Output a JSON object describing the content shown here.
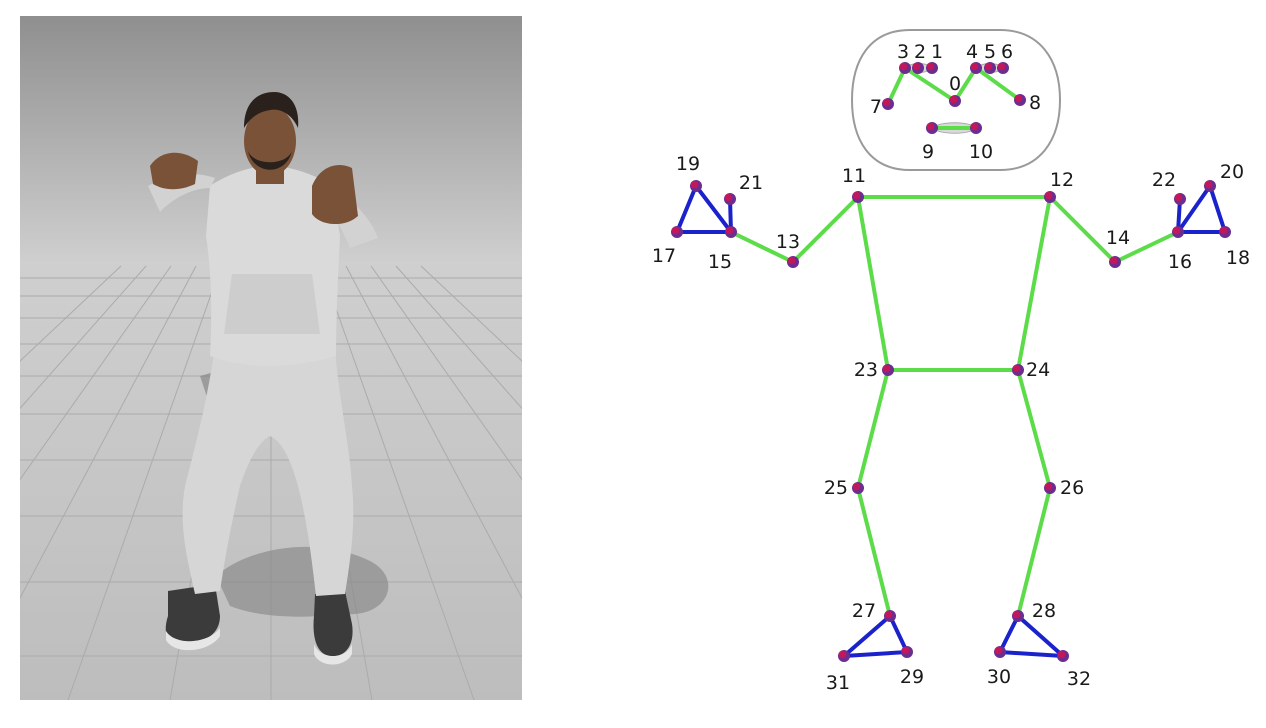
{
  "render": {
    "subject": "3d-human-figure-in-gray-hoodie-and-sweatpants",
    "colors": {
      "sky_top": "#8e8e8e",
      "sky_bottom": "#d2d2d2",
      "floor": "#c4c4c4",
      "grid": "#a9a9a9",
      "cloth": "#d7d7d7",
      "skin": "#7a5238",
      "hair": "#2a211c",
      "shoe": "#3a3a3a",
      "shadow": "#8a8a8a"
    }
  },
  "skeleton": {
    "colors": {
      "body_edge": "#5ddc4a",
      "extremity_edge": "#1a22cc",
      "landmark_fill": "#c2185b",
      "landmark_ring": "#6b2d8f",
      "label": "#1a1a1a",
      "head_outline": "#9a9a9a"
    },
    "landmarks": [
      {
        "id": "0",
        "label": "0"
      },
      {
        "id": "1",
        "label": "1"
      },
      {
        "id": "2",
        "label": "2"
      },
      {
        "id": "3",
        "label": "3"
      },
      {
        "id": "4",
        "label": "4"
      },
      {
        "id": "5",
        "label": "5"
      },
      {
        "id": "6",
        "label": "6"
      },
      {
        "id": "7",
        "label": "7"
      },
      {
        "id": "8",
        "label": "8"
      },
      {
        "id": "9",
        "label": "9"
      },
      {
        "id": "10",
        "label": "10"
      },
      {
        "id": "11",
        "label": "11"
      },
      {
        "id": "12",
        "label": "12"
      },
      {
        "id": "13",
        "label": "13"
      },
      {
        "id": "14",
        "label": "14"
      },
      {
        "id": "15",
        "label": "15"
      },
      {
        "id": "16",
        "label": "16"
      },
      {
        "id": "17",
        "label": "17"
      },
      {
        "id": "18",
        "label": "18"
      },
      {
        "id": "19",
        "label": "19"
      },
      {
        "id": "20",
        "label": "20"
      },
      {
        "id": "21",
        "label": "21"
      },
      {
        "id": "22",
        "label": "22"
      },
      {
        "id": "23",
        "label": "23"
      },
      {
        "id": "24",
        "label": "24"
      },
      {
        "id": "25",
        "label": "25"
      },
      {
        "id": "26",
        "label": "26"
      },
      {
        "id": "27",
        "label": "27"
      },
      {
        "id": "28",
        "label": "28"
      },
      {
        "id": "29",
        "label": "29"
      },
      {
        "id": "30",
        "label": "30"
      },
      {
        "id": "31",
        "label": "31"
      },
      {
        "id": "32",
        "label": "32"
      }
    ],
    "edges_body": [
      [
        "7",
        "3"
      ],
      [
        "3",
        "0"
      ],
      [
        "0",
        "4"
      ],
      [
        "4",
        "8"
      ],
      [
        "9",
        "10"
      ],
      [
        "11",
        "12"
      ],
      [
        "11",
        "13"
      ],
      [
        "13",
        "15"
      ],
      [
        "12",
        "14"
      ],
      [
        "14",
        "16"
      ],
      [
        "11",
        "23"
      ],
      [
        "12",
        "24"
      ],
      [
        "23",
        "24"
      ],
      [
        "23",
        "25"
      ],
      [
        "25",
        "27"
      ],
      [
        "24",
        "26"
      ],
      [
        "26",
        "28"
      ]
    ],
    "edges_extremity": [
      [
        "15",
        "17"
      ],
      [
        "17",
        "19"
      ],
      [
        "19",
        "15"
      ],
      [
        "15",
        "21"
      ],
      [
        "16",
        "18"
      ],
      [
        "18",
        "20"
      ],
      [
        "20",
        "16"
      ],
      [
        "16",
        "22"
      ],
      [
        "27",
        "29"
      ],
      [
        "29",
        "31"
      ],
      [
        "31",
        "27"
      ],
      [
        "28",
        "30"
      ],
      [
        "30",
        "32"
      ],
      [
        "32",
        "28"
      ]
    ]
  }
}
